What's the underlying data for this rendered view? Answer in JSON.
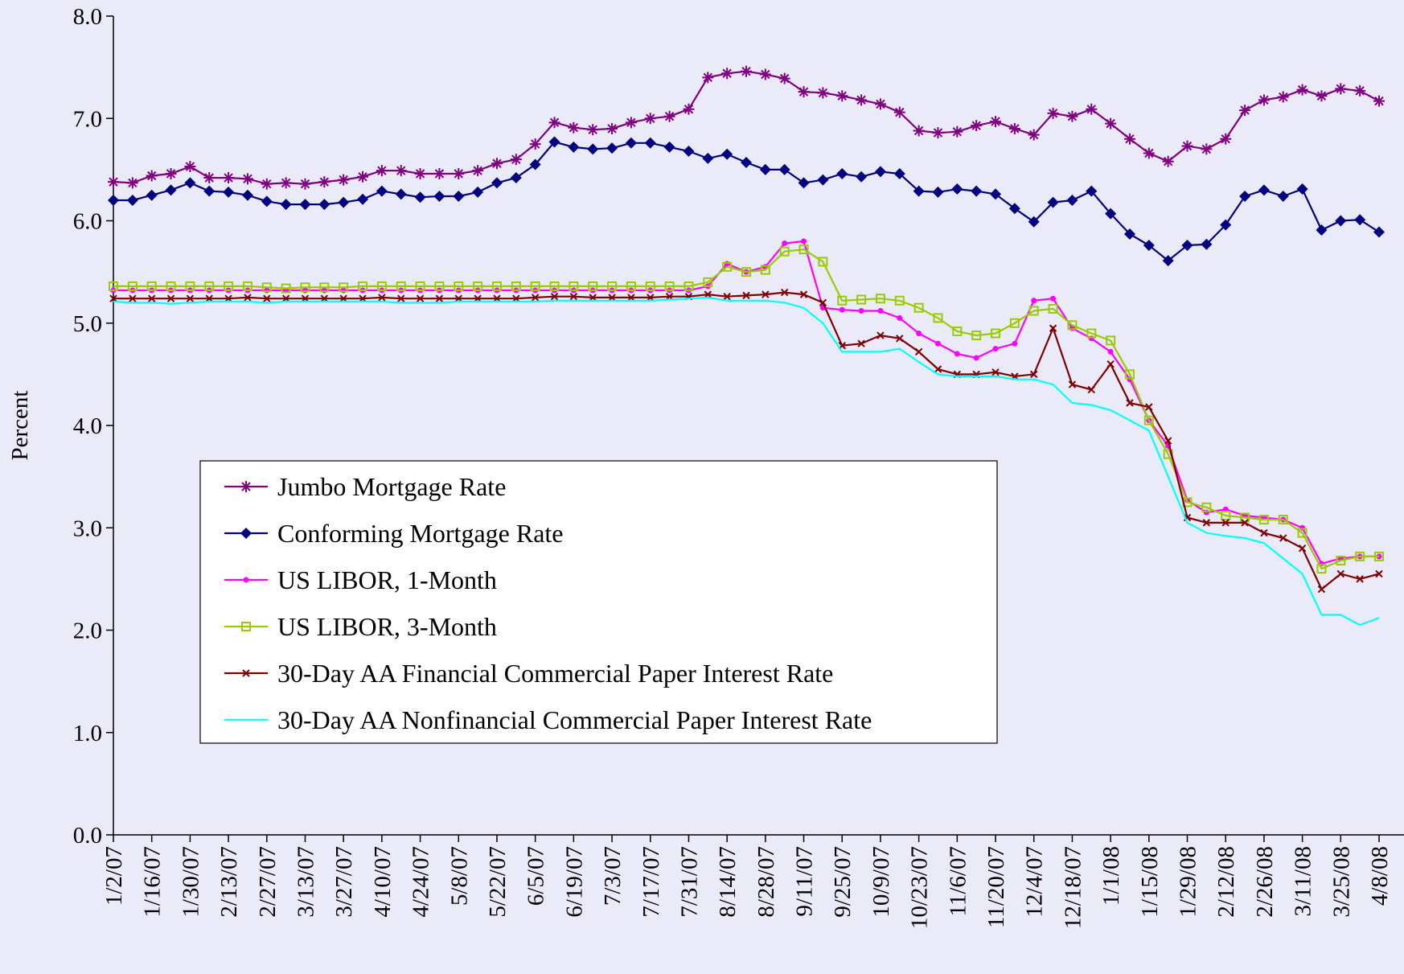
{
  "chart_data": {
    "type": "line",
    "y_label": "Percent",
    "ylim": [
      0,
      8
    ],
    "yticks": [
      {
        "value": 0,
        "label": "0.0"
      },
      {
        "value": 1,
        "label": "1.0"
      },
      {
        "value": 2,
        "label": "2.0"
      },
      {
        "value": 3,
        "label": "3.0"
      },
      {
        "value": 4,
        "label": "4.0"
      },
      {
        "value": 5,
        "label": "5.0"
      },
      {
        "value": 6,
        "label": "6.0"
      },
      {
        "value": 7,
        "label": "7.0"
      },
      {
        "value": 8,
        "label": "8.0"
      }
    ],
    "legend": "lower left",
    "categories": [
      "1/2/07",
      null,
      "1/16/07",
      null,
      "1/30/07",
      null,
      "2/13/07",
      null,
      "2/27/07",
      null,
      "3/13/07",
      null,
      "3/27/07",
      null,
      "4/10/07",
      null,
      "4/24/07",
      null,
      "5/8/07",
      null,
      "5/22/07",
      null,
      "6/5/07",
      null,
      "6/19/07",
      null,
      "7/3/07",
      null,
      "7/17/07",
      null,
      "7/31/07",
      null,
      "8/14/07",
      null,
      "8/28/07",
      null,
      "9/11/07",
      null,
      "9/25/07",
      null,
      "10/9/07",
      null,
      "10/23/07",
      null,
      "11/6/07",
      null,
      "11/20/07",
      null,
      "12/4/07",
      null,
      "12/18/07",
      null,
      "1/1/08",
      null,
      "1/15/08",
      null,
      "1/29/08",
      null,
      "2/12/08",
      null,
      "2/26/08",
      null,
      "3/11/08",
      null,
      "3/25/08",
      null,
      "4/8/08"
    ],
    "series": [
      {
        "name": "Jumbo Mortgage Rate",
        "color": "#800080",
        "marker": "star",
        "values": [
          6.38,
          6.37,
          6.44,
          6.46,
          6.53,
          6.42,
          6.42,
          6.41,
          6.36,
          6.37,
          6.36,
          6.38,
          6.4,
          6.43,
          6.49,
          6.49,
          6.46,
          6.46,
          6.46,
          6.49,
          6.56,
          6.6,
          6.75,
          6.96,
          6.91,
          6.89,
          6.9,
          6.96,
          7.0,
          7.02,
          7.09,
          7.4,
          7.44,
          7.46,
          7.43,
          7.39,
          7.26,
          7.25,
          7.22,
          7.18,
          7.14,
          7.06,
          6.88,
          6.86,
          6.87,
          6.93,
          6.97,
          6.9,
          6.84,
          7.05,
          7.02,
          7.09,
          6.95,
          6.8,
          6.66,
          6.58,
          6.73,
          6.7,
          6.8,
          7.08,
          7.18,
          7.21,
          7.28,
          7.22,
          7.29,
          7.27,
          7.17
        ]
      },
      {
        "name": "Conforming Mortgage Rate",
        "color": "#000080",
        "marker": "diamond",
        "values": [
          6.2,
          6.2,
          6.25,
          6.3,
          6.37,
          6.29,
          6.28,
          6.25,
          6.19,
          6.16,
          6.16,
          6.16,
          6.18,
          6.21,
          6.29,
          6.26,
          6.23,
          6.24,
          6.24,
          6.28,
          6.37,
          6.42,
          6.55,
          6.77,
          6.72,
          6.7,
          6.71,
          6.76,
          6.76,
          6.72,
          6.68,
          6.61,
          6.65,
          6.57,
          6.5,
          6.5,
          6.37,
          6.4,
          6.46,
          6.43,
          6.48,
          6.46,
          6.29,
          6.28,
          6.31,
          6.29,
          6.26,
          6.12,
          5.99,
          6.18,
          6.2,
          6.29,
          6.07,
          5.87,
          5.76,
          5.61,
          5.76,
          5.77,
          5.96,
          6.24,
          6.3,
          6.24,
          6.31,
          5.91,
          6.0,
          6.01,
          5.89
        ]
      },
      {
        "name": "US LIBOR, 1-Month",
        "color": "#ff00ff",
        "marker": "circle",
        "values": [
          5.32,
          5.32,
          5.32,
          5.32,
          5.32,
          5.32,
          5.32,
          5.32,
          5.32,
          5.32,
          5.32,
          5.32,
          5.32,
          5.32,
          5.32,
          5.32,
          5.32,
          5.32,
          5.32,
          5.32,
          5.32,
          5.32,
          5.32,
          5.32,
          5.32,
          5.32,
          5.32,
          5.32,
          5.32,
          5.32,
          5.32,
          5.36,
          5.58,
          5.5,
          5.55,
          5.78,
          5.8,
          5.15,
          5.13,
          5.12,
          5.12,
          5.05,
          4.9,
          4.8,
          4.7,
          4.66,
          4.75,
          4.8,
          5.22,
          5.24,
          4.95,
          4.85,
          4.72,
          4.45,
          4.05,
          3.8,
          3.27,
          3.15,
          3.18,
          3.12,
          3.1,
          3.08,
          3.0,
          2.65,
          2.7,
          2.72,
          2.72
        ]
      },
      {
        "name": "US LIBOR, 3-Month",
        "color": "#99cc00",
        "marker": "square",
        "values": [
          5.36,
          5.36,
          5.36,
          5.36,
          5.36,
          5.36,
          5.36,
          5.36,
          5.35,
          5.34,
          5.35,
          5.35,
          5.35,
          5.36,
          5.36,
          5.36,
          5.36,
          5.36,
          5.36,
          5.36,
          5.36,
          5.36,
          5.36,
          5.36,
          5.36,
          5.36,
          5.36,
          5.36,
          5.36,
          5.36,
          5.36,
          5.4,
          5.55,
          5.5,
          5.52,
          5.7,
          5.72,
          5.6,
          5.22,
          5.23,
          5.24,
          5.22,
          5.15,
          5.05,
          4.92,
          4.88,
          4.9,
          5.0,
          5.12,
          5.14,
          4.98,
          4.9,
          4.83,
          4.5,
          4.05,
          3.72,
          3.25,
          3.2,
          3.12,
          3.1,
          3.08,
          3.08,
          2.95,
          2.6,
          2.68,
          2.72,
          2.72
        ]
      },
      {
        "name": "30-Day AA Financial Commercial Paper Interest Rate",
        "color": "#800000",
        "marker": "x",
        "values": [
          5.24,
          5.24,
          5.24,
          5.24,
          5.24,
          5.24,
          5.24,
          5.25,
          5.24,
          5.24,
          5.24,
          5.24,
          5.24,
          5.24,
          5.25,
          5.24,
          5.24,
          5.24,
          5.24,
          5.24,
          5.24,
          5.24,
          5.25,
          5.26,
          5.26,
          5.25,
          5.25,
          5.25,
          5.25,
          5.26,
          5.26,
          5.28,
          5.26,
          5.27,
          5.28,
          5.3,
          5.28,
          5.2,
          4.78,
          4.8,
          4.88,
          4.85,
          4.72,
          4.55,
          4.5,
          4.5,
          4.52,
          4.48,
          4.5,
          4.95,
          4.4,
          4.35,
          4.6,
          4.22,
          4.18,
          3.85,
          3.1,
          3.05,
          3.05,
          3.05,
          2.95,
          2.9,
          2.8,
          2.4,
          2.55,
          2.5,
          2.55
        ]
      },
      {
        "name": "30-Day AA Nonfinancial Commercial Paper Interest Rate",
        "color": "#00ffff",
        "marker": "none",
        "values": [
          5.21,
          5.2,
          5.2,
          5.19,
          5.2,
          5.21,
          5.21,
          5.21,
          5.2,
          5.21,
          5.21,
          5.21,
          5.21,
          5.21,
          5.21,
          5.2,
          5.2,
          5.2,
          5.21,
          5.21,
          5.21,
          5.21,
          5.21,
          5.22,
          5.22,
          5.22,
          5.22,
          5.22,
          5.22,
          5.23,
          5.24,
          5.25,
          5.22,
          5.22,
          5.22,
          5.2,
          5.15,
          5.0,
          4.72,
          4.72,
          4.72,
          4.75,
          4.62,
          4.5,
          4.48,
          4.48,
          4.48,
          4.45,
          4.45,
          4.4,
          4.22,
          4.2,
          4.15,
          4.05,
          3.95,
          3.5,
          3.05,
          2.95,
          2.92,
          2.9,
          2.85,
          2.7,
          2.55,
          2.15,
          2.15,
          2.05,
          2.12
        ]
      }
    ]
  }
}
